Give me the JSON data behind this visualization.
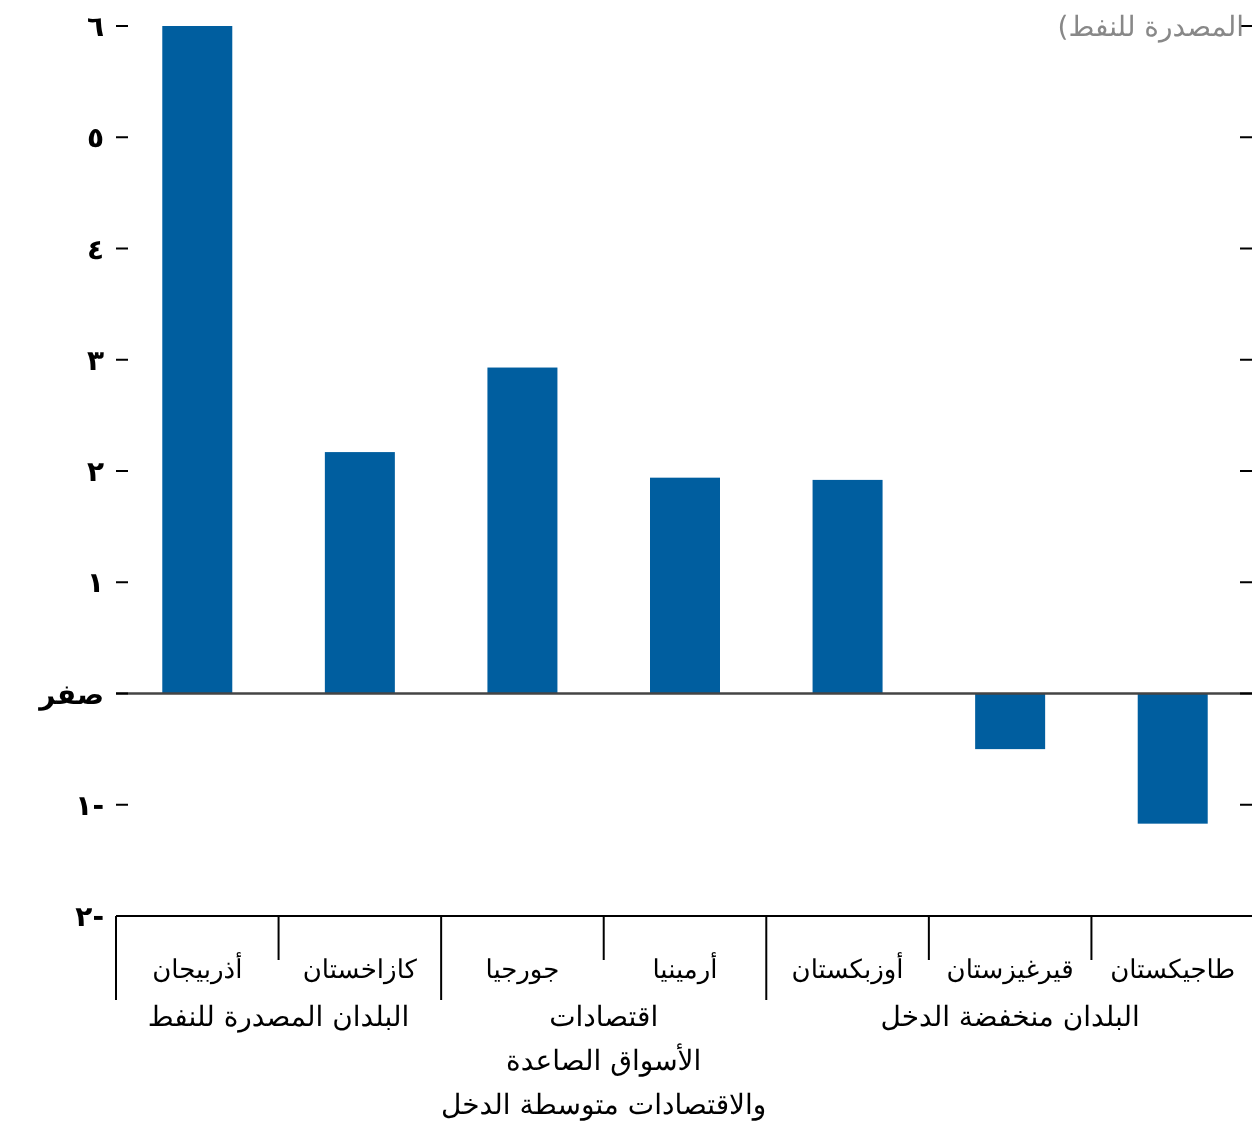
{
  "chart_data": {
    "type": "bar",
    "categories": [
      "أذربيجان",
      "كازاخستان",
      "جورجيا",
      "أرمينيا",
      "أوزبكستان",
      "قيرغيزستان",
      "طاجيكستان"
    ],
    "values": [
      6.0,
      2.17,
      2.93,
      1.94,
      1.92,
      -0.5,
      -1.17
    ],
    "color": "#005e9f",
    "ylim": [
      -2,
      6
    ],
    "yticks": [
      {
        "value": -2,
        "label": "٢-"
      },
      {
        "value": -1,
        "label": "١-"
      },
      {
        "value": 0,
        "label": "صفر"
      },
      {
        "value": 1,
        "label": "١"
      },
      {
        "value": 2,
        "label": "٢"
      },
      {
        "value": 3,
        "label": "٣"
      },
      {
        "value": 4,
        "label": "٤"
      },
      {
        "value": 5,
        "label": "٥"
      },
      {
        "value": 6,
        "label": "٦"
      }
    ],
    "annotations": [
      "المصدرة للنفط)",
      "البلدان المصدرة للنفط",
      "اقتصادات\nالأسواق الصاعدة\nوالاقتصادات متوسطة الدخل",
      "البلدان منخفضة الدخل"
    ]
  }
}
